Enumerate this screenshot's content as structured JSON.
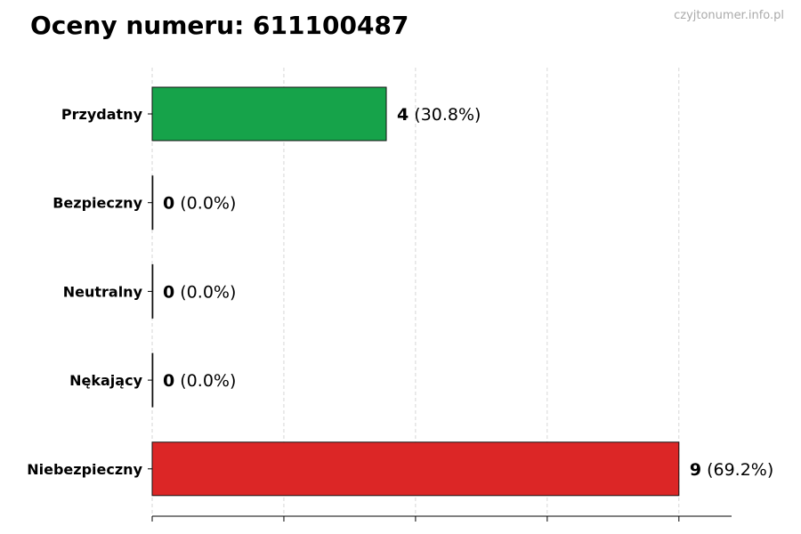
{
  "title": "Oceny numeru: 611100487",
  "watermark": "czyjtonumer.info.pl",
  "chart_data": {
    "type": "bar",
    "orientation": "horizontal",
    "title": "Oceny numeru: 611100487",
    "categories": [
      "Przydatny",
      "Bezpieczny",
      "Neutralny",
      "Nękający",
      "Niebezpieczny"
    ],
    "values": [
      4,
      0,
      0,
      0,
      9
    ],
    "labels": [
      "(30.8%)",
      "(0.0%)",
      "(0.0%)",
      "(0.0%)",
      "(69.2%)"
    ],
    "colors": [
      "#16a34a",
      "#888888",
      "#888888",
      "#888888",
      "#dc2626"
    ],
    "xlim": [
      0,
      9.9
    ],
    "xticks": [
      0,
      2.25,
      4.5,
      6.75,
      9
    ],
    "xtick_labels_shown": false,
    "grid": "vertical dashed",
    "xlabel": "",
    "ylabel": ""
  }
}
